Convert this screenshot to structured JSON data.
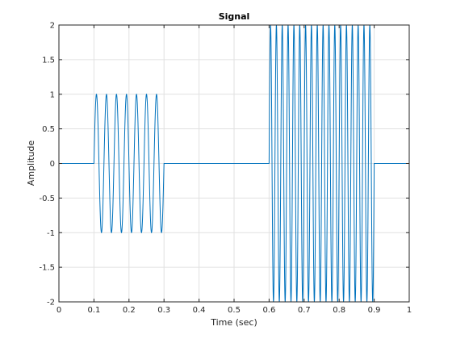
{
  "chart_data": {
    "type": "line",
    "title": "Signal",
    "xlabel": "Time (sec)",
    "ylabel": "Amplitude",
    "xlim": [
      0,
      1
    ],
    "ylim": [
      -2,
      2
    ],
    "xticks": [
      0,
      0.1,
      0.2,
      0.3,
      0.4,
      0.5,
      0.6,
      0.7,
      0.8,
      0.9,
      1
    ],
    "xtick_labels": [
      "0",
      "0.1",
      "0.2",
      "0.3",
      "0.4",
      "0.5",
      "0.6",
      "0.7",
      "0.8",
      "0.9",
      "1"
    ],
    "yticks": [
      2,
      1.5,
      1,
      0.5,
      0,
      -0.5,
      -1,
      -1.5,
      -2
    ],
    "ytick_labels": [
      "2",
      "1.5",
      "1",
      "0.5",
      "0",
      "-0.5",
      "-1",
      "-1.5",
      "-2"
    ],
    "grid": true,
    "line_color": "#0072bd",
    "series": [
      {
        "segments": [
          {
            "x_start": 0.0,
            "x_end": 0.1,
            "amplitude": 0,
            "frequency_hz": 0
          },
          {
            "x_start": 0.1,
            "x_end": 0.3,
            "amplitude": 1,
            "frequency_hz": 35
          },
          {
            "x_start": 0.3,
            "x_end": 0.6,
            "amplitude": 0,
            "frequency_hz": 0
          },
          {
            "x_start": 0.6,
            "x_end": 0.9,
            "amplitude": 2,
            "frequency_hz": 60
          },
          {
            "x_start": 0.9,
            "x_end": 1.0,
            "amplitude": 0,
            "frequency_hz": 0
          }
        ]
      }
    ]
  }
}
